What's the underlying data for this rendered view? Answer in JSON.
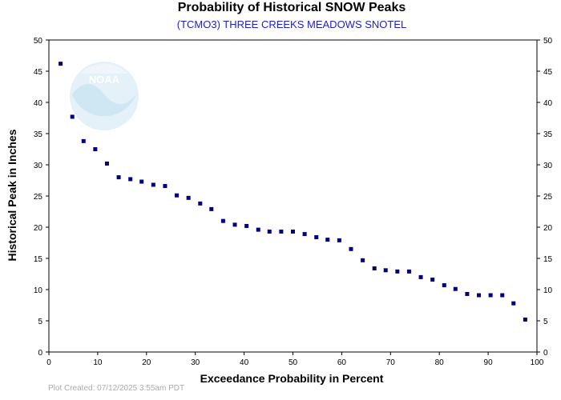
{
  "header": {
    "title": "Probability of Historical SNOW Peaks",
    "subtitle": "(TCMO3) THREE CREEKS MEADOWS SNOTEL"
  },
  "footer": {
    "plot_created": "Plot Created: 07/12/2025 3:55am PDT"
  },
  "logo": {
    "text": "NOAA"
  },
  "colors": {
    "points": "#000080",
    "subtitle": "#1f1fd0",
    "logo": "#e6f0f8"
  },
  "chart_data": {
    "type": "scatter",
    "title": "Probability of Historical SNOW Peaks",
    "subtitle": "(TCMO3) THREE CREEKS MEADOWS SNOTEL",
    "xlabel": "Exceedance Probability in Percent",
    "ylabel": "Historical Peak in Inches",
    "xlim": [
      0,
      100
    ],
    "ylim": [
      0,
      50
    ],
    "xticks": [
      0,
      10,
      20,
      30,
      40,
      50,
      60,
      70,
      80,
      90,
      100
    ],
    "yticks": [
      0,
      5,
      10,
      15,
      20,
      25,
      30,
      35,
      40,
      45,
      50
    ],
    "right_axis": true,
    "grid": false,
    "series": [
      {
        "x": [
          2.4,
          4.8,
          7.1,
          9.5,
          11.9,
          14.3,
          16.7,
          19.0,
          21.4,
          23.8,
          26.2,
          28.6,
          31.0,
          33.3,
          35.7,
          38.1,
          40.5,
          42.9,
          45.2,
          47.6,
          50.0,
          52.4,
          54.8,
          57.1,
          59.5,
          61.9,
          64.3,
          66.7,
          69.0,
          71.4,
          73.8,
          76.2,
          78.6,
          81.0,
          83.3,
          85.7,
          88.1,
          90.5,
          92.9,
          95.2,
          97.6
        ],
        "y": [
          46.2,
          37.7,
          33.8,
          32.5,
          30.2,
          28.0,
          27.7,
          27.3,
          26.8,
          26.6,
          25.1,
          24.7,
          23.8,
          22.9,
          21.0,
          20.4,
          20.2,
          19.6,
          19.3,
          19.3,
          19.3,
          18.9,
          18.4,
          18.0,
          17.9,
          16.5,
          14.7,
          13.4,
          13.1,
          12.9,
          12.9,
          12.0,
          11.6,
          10.7,
          10.1,
          9.3,
          9.1,
          9.1,
          9.1,
          7.8,
          5.2
        ]
      }
    ]
  }
}
